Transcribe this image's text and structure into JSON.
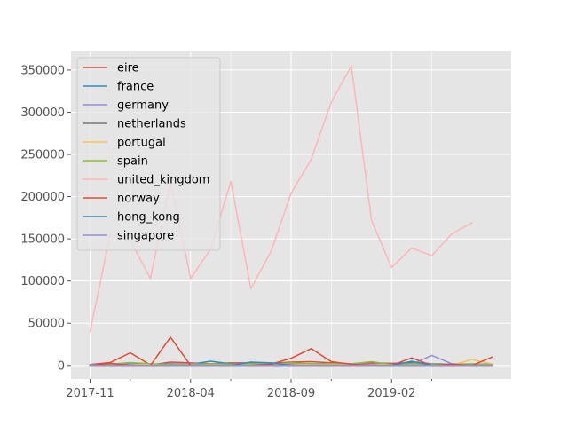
{
  "chart_data": {
    "type": "line",
    "title": "",
    "xlabel": "",
    "ylabel": "",
    "grid": true,
    "legend_position": "top-left",
    "background_color": "#e5e5e5",
    "ylim": [
      -16000,
      372000
    ],
    "x": [
      "2017-11",
      "2017-12",
      "2018-01",
      "2018-02",
      "2018-03",
      "2018-04",
      "2018-05",
      "2018-06",
      "2018-07",
      "2018-08",
      "2018-09",
      "2018-10",
      "2018-11",
      "2018-12",
      "2019-01",
      "2019-02",
      "2019-03",
      "2019-04",
      "2019-05",
      "2019-06",
      "2019-07"
    ],
    "x_tick_labels": [
      {
        "date": "2017-11",
        "label": "2017-11"
      },
      {
        "date": "2018-04",
        "label": "2018-04"
      },
      {
        "date": "2018-09",
        "label": "2018-09"
      },
      {
        "date": "2019-02",
        "label": "2019-02"
      }
    ],
    "x_minor_ticks": [
      "2018-01",
      "2018-06",
      "2018-11",
      "2019-04"
    ],
    "y_ticks": [
      {
        "value": 0,
        "label": "0"
      },
      {
        "value": 50000,
        "label": "50000"
      },
      {
        "value": 100000,
        "label": "100000"
      },
      {
        "value": 150000,
        "label": "150000"
      },
      {
        "value": 200000,
        "label": "200000"
      },
      {
        "value": 250000,
        "label": "250000"
      },
      {
        "value": 300000,
        "label": "300000"
      },
      {
        "value": 350000,
        "label": "350000"
      }
    ],
    "series": [
      {
        "name": "eire",
        "color": "#e24a33",
        "values": [
          1000,
          3500,
          15000,
          500,
          4000,
          3000,
          2000,
          3000,
          3000,
          2500,
          4000,
          4500,
          3000,
          2000,
          3000,
          2500,
          3000,
          2000,
          1500,
          1000,
          1500
        ]
      },
      {
        "name": "france",
        "color": "#348abd",
        "values": [
          1000,
          1500,
          2000,
          1500,
          2000,
          1500,
          5000,
          2000,
          1500,
          3000,
          1500,
          2000,
          2000,
          1500,
          1000,
          1500,
          4000,
          2000,
          1500,
          1000,
          1500
        ]
      },
      {
        "name": "germany",
        "color": "#988ed5",
        "values": [
          500,
          1000,
          1500,
          1000,
          1500,
          2000,
          1500,
          1000,
          1500,
          2500,
          1500,
          2000,
          2000,
          1500,
          1500,
          1000,
          1500,
          12000,
          2000,
          1500,
          2000
        ]
      },
      {
        "name": "netherlands",
        "color": "#777777",
        "values": [
          500,
          500,
          1000,
          500,
          1000,
          500,
          1000,
          500,
          1000,
          500,
          1000,
          500,
          1000,
          500,
          1000,
          500,
          1000,
          500,
          1000,
          500,
          500
        ]
      },
      {
        "name": "portugal",
        "color": "#fbc15e",
        "values": [
          500,
          1000,
          500,
          1000,
          500,
          1000,
          500,
          1000,
          500,
          1000,
          500,
          1000,
          500,
          1000,
          500,
          1000,
          500,
          1000,
          500,
          7000,
          2000
        ]
      },
      {
        "name": "spain",
        "color": "#8eba42",
        "values": [
          500,
          1500,
          3500,
          2000,
          1000,
          1000,
          2000,
          1500,
          2000,
          1500,
          3000,
          2000,
          2000,
          2000,
          4500,
          1000,
          2000,
          1500,
          1500,
          2000,
          1000
        ]
      },
      {
        "name": "united_kingdom",
        "color": "#ffb5b8",
        "values": [
          40000,
          155000,
          148000,
          103000,
          218000,
          103000,
          138000,
          218000,
          91000,
          135000,
          204000,
          244000,
          312000,
          355000,
          172000,
          116000,
          139000,
          130000,
          156000,
          169000,
          null
        ]
      },
      {
        "name": "norway",
        "color": "#e24a33",
        "values": [
          0,
          2500,
          0,
          0,
          33500,
          0,
          0,
          0,
          0,
          1500,
          8500,
          20000,
          4500,
          1500,
          0,
          0,
          9000,
          0,
          1500,
          0,
          10000
        ]
      },
      {
        "name": "hong_kong",
        "color": "#348abd",
        "values": [
          0,
          0,
          0,
          0,
          0,
          0,
          0,
          0,
          4000,
          3000,
          0,
          0,
          0,
          0,
          0,
          0,
          5000,
          0,
          0,
          0,
          0
        ]
      },
      {
        "name": "singapore",
        "color": "#988ed5",
        "values": [
          0,
          0,
          0,
          0,
          0,
          0,
          0,
          0,
          0,
          0,
          0,
          0,
          0,
          0,
          0,
          0,
          0,
          0,
          0,
          0,
          0
        ]
      }
    ]
  }
}
